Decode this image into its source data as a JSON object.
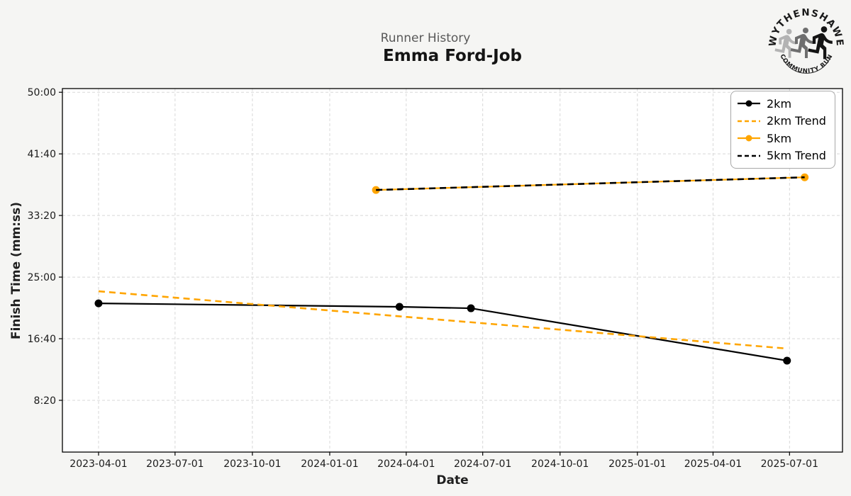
{
  "header": {
    "subtitle": "Runner History",
    "title": "Emma Ford-Job"
  },
  "logo": {
    "top_text": "WYTHENSHAWE",
    "bottom_text": "COMMUNITY RUN"
  },
  "colors": {
    "background": "#f5f5f3",
    "plot_background": "#ffffff",
    "grid": "#d8d8d8",
    "frame": "#000000",
    "series_black": "#000000",
    "series_orange": "#FFA500",
    "subtitle_gray": "#595959"
  },
  "chart_data": {
    "type": "line",
    "title": "Emma Ford-Job",
    "suptitle": "Runner History",
    "xlabel": "Date",
    "ylabel": "Finish Time (mm:ss)",
    "grid": true,
    "legend_position": "upper right",
    "x_axis": {
      "unit": "days_since_2023-01-01",
      "min": 47,
      "max": 975,
      "ticks": [
        {
          "day": 90,
          "label": "2023-04-01"
        },
        {
          "day": 181,
          "label": "2023-07-01"
        },
        {
          "day": 273,
          "label": "2023-10-01"
        },
        {
          "day": 365,
          "label": "2024-01-01"
        },
        {
          "day": 456,
          "label": "2024-04-01"
        },
        {
          "day": 547,
          "label": "2024-07-01"
        },
        {
          "day": 639,
          "label": "2024-10-01"
        },
        {
          "day": 731,
          "label": "2025-01-01"
        },
        {
          "day": 821,
          "label": "2025-04-01"
        },
        {
          "day": 912,
          "label": "2025-07-01"
        }
      ]
    },
    "y_axis": {
      "unit": "seconds",
      "min": 80,
      "max": 3030,
      "ticks": [
        {
          "seconds": 500,
          "label": "8:20"
        },
        {
          "seconds": 1000,
          "label": "16:40"
        },
        {
          "seconds": 1500,
          "label": "25:00"
        },
        {
          "seconds": 2000,
          "label": "33:20"
        },
        {
          "seconds": 2500,
          "label": "41:40"
        },
        {
          "seconds": 3000,
          "label": "50:00"
        }
      ]
    },
    "series": [
      {
        "name": "2km",
        "color": "#000000",
        "style": "solid",
        "marker": true,
        "points": [
          {
            "date": "2023-04-01",
            "day": 90,
            "time": "21:27",
            "seconds": 1287
          },
          {
            "date": "2024-03-24",
            "day": 448,
            "time": "20:59",
            "seconds": 1259
          },
          {
            "date": "2024-06-17",
            "day": 533,
            "time": "20:47",
            "seconds": 1247
          },
          {
            "date": "2025-06-28",
            "day": 909,
            "time": "13:42",
            "seconds": 822
          }
        ]
      },
      {
        "name": "2km Trend",
        "color": "#FFA500",
        "style": "dashed",
        "marker": false,
        "points": [
          {
            "date": "2023-04-01",
            "day": 90,
            "time": "23:05",
            "seconds": 1385
          },
          {
            "date": "2025-06-28",
            "day": 909,
            "time": "15:20",
            "seconds": 920
          }
        ]
      },
      {
        "name": "5km",
        "color": "#FFA500",
        "style": "solid",
        "marker": true,
        "points": [
          {
            "date": "2024-02-25",
            "day": 420,
            "time": "36:47",
            "seconds": 2207
          },
          {
            "date": "2025-07-19",
            "day": 930,
            "time": "38:30",
            "seconds": 2310
          }
        ]
      },
      {
        "name": "5km Trend",
        "color": "#000000",
        "style": "dashed",
        "marker": false,
        "points": [
          {
            "date": "2024-02-25",
            "day": 420,
            "time": "36:47",
            "seconds": 2207
          },
          {
            "date": "2025-07-19",
            "day": 930,
            "time": "38:30",
            "seconds": 2310
          }
        ]
      }
    ],
    "legend": [
      {
        "label": "2km"
      },
      {
        "label": "2km Trend"
      },
      {
        "label": "5km"
      },
      {
        "label": "5km Trend"
      }
    ]
  }
}
